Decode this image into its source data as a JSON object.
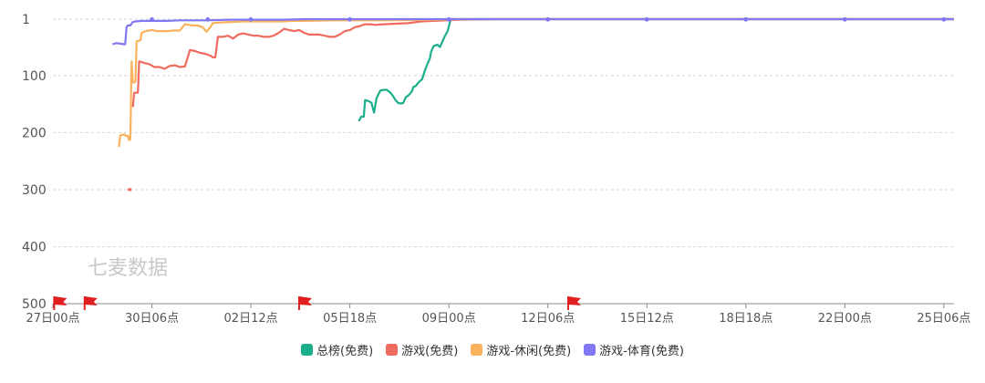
{
  "watermark": "七麦数据",
  "chart_data": {
    "type": "line",
    "y_axis": {
      "reversed": true,
      "range": [
        1,
        500
      ],
      "ticks": [
        "1",
        "100",
        "200",
        "300",
        "400",
        "500"
      ],
      "tick_values": [
        1,
        100,
        200,
        300,
        400,
        500
      ]
    },
    "x_ticks": [
      {
        "t": 0,
        "label": "27日00点"
      },
      {
        "t": 78,
        "label": "30日06点"
      },
      {
        "t": 156,
        "label": "02日12点"
      },
      {
        "t": 234,
        "label": "05日18点"
      },
      {
        "t": 312,
        "label": "09日00点"
      },
      {
        "t": 390,
        "label": "12日06点"
      },
      {
        "t": 468,
        "label": "15日12点"
      },
      {
        "t": 546,
        "label": "18日18点"
      },
      {
        "t": 624,
        "label": "22日00点"
      },
      {
        "t": 702,
        "label": "25日06点"
      }
    ],
    "x_range": [
      0,
      710
    ],
    "event_flags": [
      1,
      25,
      194,
      406
    ],
    "grid": true,
    "legend_position": "bottom",
    "series": [
      {
        "name": "总榜(免费)",
        "color": "#1aaf8b",
        "points": [
          [
            241,
            180
          ],
          [
            243,
            172
          ],
          [
            245,
            172
          ],
          [
            246,
            143
          ],
          [
            249,
            145
          ],
          [
            251,
            148
          ],
          [
            253,
            165
          ],
          [
            255,
            140
          ],
          [
            258,
            126
          ],
          [
            261,
            125
          ],
          [
            263,
            125
          ],
          [
            266,
            130
          ],
          [
            268,
            136
          ],
          [
            270,
            143
          ],
          [
            272,
            148
          ],
          [
            274,
            149
          ],
          [
            276,
            148
          ],
          [
            278,
            138
          ],
          [
            281,
            133
          ],
          [
            283,
            127
          ],
          [
            284,
            120
          ],
          [
            286,
            118
          ],
          [
            288,
            112
          ],
          [
            291,
            106
          ],
          [
            293,
            92
          ],
          [
            295,
            80
          ],
          [
            297,
            70
          ],
          [
            298,
            58
          ],
          [
            300,
            48
          ],
          [
            303,
            46
          ],
          [
            305,
            50
          ],
          [
            307,
            40
          ],
          [
            309,
            30
          ],
          [
            311,
            22
          ],
          [
            313,
            5
          ],
          [
            314,
            1
          ],
          [
            330,
            1
          ],
          [
            400,
            1
          ],
          [
            500,
            1
          ],
          [
            600,
            1
          ],
          [
            710,
            1
          ]
        ]
      },
      {
        "name": "游戏(免费)",
        "color": "#f06a5f",
        "points": [
          [
            63,
            155
          ],
          [
            64,
            130
          ],
          [
            67,
            130
          ],
          [
            68,
            75
          ],
          [
            72,
            78
          ],
          [
            76,
            80
          ],
          [
            80,
            85
          ],
          [
            84,
            85
          ],
          [
            88,
            88
          ],
          [
            92,
            83
          ],
          [
            96,
            82
          ],
          [
            100,
            85
          ],
          [
            104,
            84
          ],
          [
            108,
            55
          ],
          [
            112,
            57
          ],
          [
            116,
            60
          ],
          [
            120,
            62
          ],
          [
            124,
            65
          ],
          [
            126,
            68
          ],
          [
            128,
            68
          ],
          [
            130,
            32
          ],
          [
            134,
            32
          ],
          [
            138,
            30
          ],
          [
            142,
            35
          ],
          [
            146,
            28
          ],
          [
            150,
            26
          ],
          [
            154,
            28
          ],
          [
            158,
            30
          ],
          [
            162,
            30
          ],
          [
            166,
            32
          ],
          [
            170,
            32
          ],
          [
            174,
            30
          ],
          [
            178,
            25
          ],
          [
            182,
            18
          ],
          [
            186,
            20
          ],
          [
            190,
            22
          ],
          [
            194,
            20
          ],
          [
            198,
            25
          ],
          [
            202,
            28
          ],
          [
            206,
            28
          ],
          [
            210,
            28
          ],
          [
            214,
            30
          ],
          [
            218,
            32
          ],
          [
            222,
            32
          ],
          [
            226,
            28
          ],
          [
            230,
            22
          ],
          [
            234,
            20
          ],
          [
            238,
            15
          ],
          [
            242,
            13
          ],
          [
            246,
            10
          ],
          [
            250,
            10
          ],
          [
            254,
            11
          ],
          [
            260,
            10
          ],
          [
            270,
            9
          ],
          [
            280,
            8
          ],
          [
            290,
            5
          ],
          [
            300,
            4
          ],
          [
            320,
            2
          ],
          [
            350,
            1
          ],
          [
            400,
            1
          ],
          [
            500,
            1
          ],
          [
            600,
            1
          ],
          [
            710,
            1
          ]
        ]
      },
      {
        "name": "游戏-休闲(免费)",
        "color": "#fbb25d",
        "points": [
          [
            52,
            225
          ],
          [
            53,
            205
          ],
          [
            56,
            203
          ],
          [
            58,
            206
          ],
          [
            59,
            205
          ],
          [
            60,
            213
          ],
          [
            61,
            212
          ],
          [
            62,
            75
          ],
          [
            63,
            112
          ],
          [
            64,
            112
          ],
          [
            65,
            110
          ],
          [
            66,
            40
          ],
          [
            69,
            38
          ],
          [
            70,
            25
          ],
          [
            73,
            22
          ],
          [
            78,
            20
          ],
          [
            82,
            22
          ],
          [
            86,
            22
          ],
          [
            90,
            22
          ],
          [
            95,
            21
          ],
          [
            100,
            21
          ],
          [
            104,
            10
          ],
          [
            110,
            12
          ],
          [
            114,
            12
          ],
          [
            118,
            15
          ],
          [
            121,
            23
          ],
          [
            124,
            15
          ],
          [
            126,
            8
          ],
          [
            130,
            7
          ],
          [
            140,
            6
          ],
          [
            150,
            5
          ],
          [
            160,
            5
          ],
          [
            170,
            5
          ],
          [
            180,
            5
          ],
          [
            190,
            4
          ],
          [
            200,
            4
          ],
          [
            220,
            3
          ],
          [
            240,
            3
          ],
          [
            260,
            3
          ],
          [
            300,
            2
          ],
          [
            330,
            1
          ],
          [
            400,
            1
          ],
          [
            500,
            1
          ],
          [
            600,
            1
          ],
          [
            710,
            1
          ]
        ]
      },
      {
        "name": "游戏-体育(免费)",
        "color": "#8277f3",
        "points": [
          [
            47,
            45
          ],
          [
            50,
            43
          ],
          [
            53,
            44
          ],
          [
            56,
            45
          ],
          [
            57,
            45
          ],
          [
            58,
            15
          ],
          [
            59,
            12
          ],
          [
            61,
            12
          ],
          [
            63,
            6
          ],
          [
            65,
            5
          ],
          [
            70,
            4
          ],
          [
            80,
            4
          ],
          [
            90,
            4
          ],
          [
            100,
            3
          ],
          [
            120,
            3
          ],
          [
            140,
            2
          ],
          [
            160,
            2
          ],
          [
            180,
            2
          ],
          [
            200,
            1
          ],
          [
            220,
            1
          ],
          [
            240,
            1
          ],
          [
            260,
            1
          ],
          [
            300,
            1
          ],
          [
            400,
            1
          ],
          [
            500,
            1
          ],
          [
            600,
            1
          ],
          [
            710,
            1
          ]
        ]
      },
      {
        "name": "",
        "color": "#f06a5f",
        "points": [
          [
            59,
            300
          ],
          [
            62,
            300
          ]
        ]
      }
    ]
  },
  "legend": [
    {
      "label": "总榜(免费)",
      "color": "#1aaf8b"
    },
    {
      "label": "游戏(免费)",
      "color": "#f06a5f"
    },
    {
      "label": "游戏-休闲(免费)",
      "color": "#fbb25d"
    },
    {
      "label": "游戏-体育(免费)",
      "color": "#8277f3"
    }
  ]
}
